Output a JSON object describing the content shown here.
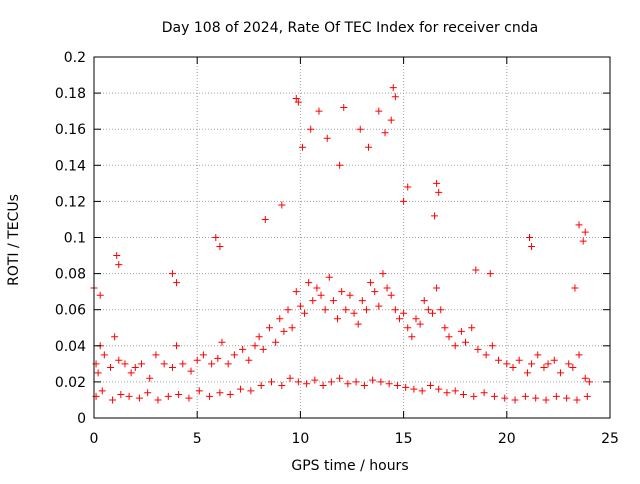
{
  "chart_data": {
    "type": "scatter",
    "title": "Day 108 of 2024, Rate Of TEC Index for receiver cnda",
    "xlabel": "GPS time / hours",
    "ylabel": "ROTI / TECUs",
    "xlim": [
      0,
      25
    ],
    "ylim": [
      0,
      0.2
    ],
    "xticks": [
      "0",
      "5",
      "10",
      "15",
      "20",
      "25"
    ],
    "yticks": [
      "0",
      "0.02",
      "0.04",
      "0.06",
      "0.08",
      "0.1",
      "0.12",
      "0.14",
      "0.16",
      "0.18",
      "0.2"
    ],
    "grid": true,
    "marker": "+",
    "marker_color": "#ff0000",
    "series": [
      {
        "x": [
          0.1,
          0.2,
          0.3,
          0.5,
          0.8,
          1.0,
          1.2,
          1.5,
          1.8,
          2.0,
          2.3,
          2.7,
          3.0,
          3.4,
          3.8,
          4.0,
          4.3,
          4.7,
          5.0,
          5.3,
          5.7,
          6.0,
          6.2,
          6.5,
          6.8,
          7.2,
          7.5,
          7.8,
          8.0,
          8.2,
          8.5,
          8.8,
          9.0,
          9.2,
          9.4,
          9.6,
          9.8,
          10.0,
          10.2,
          10.4,
          10.6,
          10.8,
          11.0,
          11.2,
          11.4,
          11.6,
          11.8,
          12.0,
          12.2,
          12.4,
          12.6,
          12.8,
          13.0,
          13.2,
          13.4,
          13.6,
          13.8,
          14.0,
          14.2,
          14.4,
          14.6,
          14.8,
          15.0,
          15.2,
          15.4,
          15.6,
          15.8,
          16.0,
          16.2,
          16.4,
          16.6,
          16.8,
          17.0,
          17.2,
          17.5,
          17.8,
          18.0,
          18.3,
          18.6,
          19.0,
          19.3,
          19.6,
          20.0,
          20.3,
          20.6,
          21.0,
          21.2,
          21.5,
          21.8,
          22.0,
          22.3,
          22.6,
          23.0,
          23.2,
          23.5,
          23.8,
          24.0,
          0.1,
          0.4,
          0.9,
          1.3,
          1.7,
          2.2,
          2.6,
          3.1,
          3.6,
          4.1,
          4.6,
          5.1,
          5.6,
          6.1,
          6.6,
          7.1,
          7.6,
          8.1,
          8.6,
          9.1,
          9.5,
          9.9,
          10.3,
          10.7,
          11.1,
          11.5,
          11.9,
          12.3,
          12.7,
          13.1,
          13.5,
          13.9,
          14.3,
          14.7,
          15.1,
          15.5,
          15.9,
          16.3,
          16.7,
          17.1,
          17.5,
          17.9,
          18.4,
          18.9,
          19.4,
          19.9,
          20.4,
          20.9,
          21.4,
          21.9,
          22.4,
          22.9,
          23.4,
          23.9,
          0.0,
          0.3,
          1.1,
          1.2,
          3.8,
          4.0,
          5.9,
          6.1,
          8.3,
          9.1,
          9.8,
          9.9,
          10.1,
          10.5,
          10.9,
          11.3,
          11.9,
          12.1,
          12.9,
          13.3,
          13.8,
          14.1,
          14.4,
          14.5,
          14.6,
          15.0,
          15.2,
          16.5,
          16.6,
          16.7,
          18.5,
          19.2,
          21.1,
          21.2,
          23.3,
          23.5,
          23.7,
          23.8
        ],
        "y": [
          0.03,
          0.025,
          0.04,
          0.035,
          0.028,
          0.045,
          0.032,
          0.03,
          0.025,
          0.028,
          0.03,
          0.022,
          0.035,
          0.03,
          0.028,
          0.04,
          0.03,
          0.026,
          0.032,
          0.035,
          0.03,
          0.033,
          0.042,
          0.03,
          0.035,
          0.038,
          0.032,
          0.04,
          0.045,
          0.038,
          0.05,
          0.042,
          0.055,
          0.048,
          0.06,
          0.05,
          0.07,
          0.062,
          0.058,
          0.075,
          0.065,
          0.072,
          0.068,
          0.06,
          0.078,
          0.065,
          0.055,
          0.07,
          0.06,
          0.068,
          0.058,
          0.052,
          0.065,
          0.06,
          0.075,
          0.07,
          0.062,
          0.08,
          0.072,
          0.068,
          0.06,
          0.055,
          0.058,
          0.05,
          0.045,
          0.055,
          0.052,
          0.065,
          0.06,
          0.058,
          0.072,
          0.06,
          0.05,
          0.045,
          0.04,
          0.048,
          0.042,
          0.05,
          0.038,
          0.035,
          0.04,
          0.032,
          0.03,
          0.028,
          0.032,
          0.025,
          0.03,
          0.035,
          0.028,
          0.03,
          0.032,
          0.025,
          0.03,
          0.028,
          0.035,
          0.022,
          0.02,
          0.012,
          0.015,
          0.01,
          0.013,
          0.012,
          0.011,
          0.014,
          0.01,
          0.012,
          0.013,
          0.011,
          0.015,
          0.012,
          0.014,
          0.013,
          0.016,
          0.015,
          0.018,
          0.02,
          0.018,
          0.022,
          0.02,
          0.019,
          0.021,
          0.018,
          0.02,
          0.022,
          0.019,
          0.02,
          0.018,
          0.021,
          0.02,
          0.019,
          0.018,
          0.017,
          0.016,
          0.015,
          0.018,
          0.016,
          0.014,
          0.015,
          0.013,
          0.012,
          0.014,
          0.012,
          0.011,
          0.01,
          0.012,
          0.011,
          0.01,
          0.012,
          0.011,
          0.01,
          0.012,
          0.072,
          0.068,
          0.09,
          0.085,
          0.08,
          0.075,
          0.1,
          0.095,
          0.11,
          0.118,
          0.177,
          0.175,
          0.15,
          0.16,
          0.17,
          0.155,
          0.14,
          0.172,
          0.16,
          0.15,
          0.17,
          0.158,
          0.165,
          0.183,
          0.178,
          0.12,
          0.128,
          0.112,
          0.13,
          0.125,
          0.082,
          0.08,
          0.1,
          0.095,
          0.072,
          0.107,
          0.098,
          0.103
        ]
      }
    ]
  }
}
